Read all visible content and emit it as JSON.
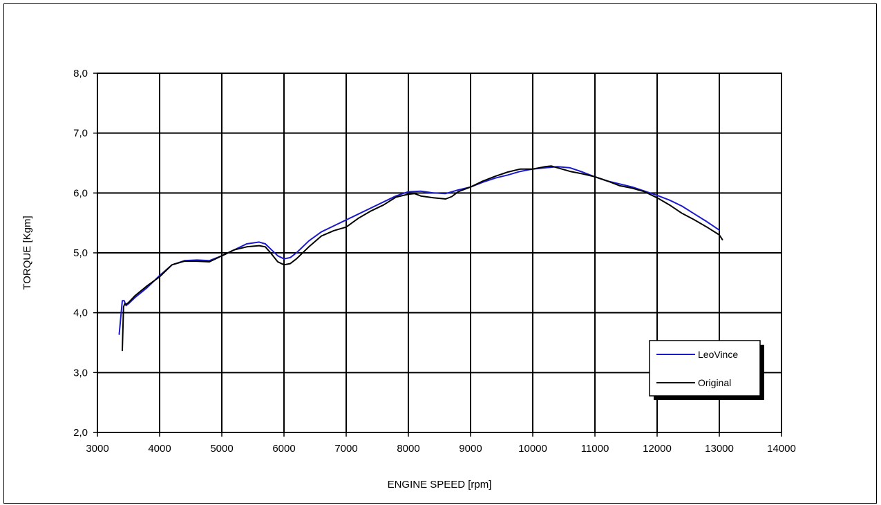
{
  "chart_data": {
    "type": "line",
    "xlabel": "ENGINE SPEED [rpm]",
    "ylabel": "TORQUE [Kgm]",
    "xlim": [
      3000,
      14000
    ],
    "ylim": [
      2.0,
      8.0
    ],
    "x_ticks": [
      "3000",
      "4000",
      "5000",
      "6000",
      "7000",
      "8000",
      "9000",
      "10000",
      "11000",
      "12000",
      "13000",
      "14000"
    ],
    "y_ticks": [
      "2,0",
      "3,0",
      "4,0",
      "5,0",
      "6,0",
      "7,0",
      "8,0"
    ],
    "grid": true,
    "legend_position": "bottom-right",
    "series": [
      {
        "name": "LeoVince",
        "color": "#1a1acc",
        "x": [
          3350,
          3400,
          3430,
          3460,
          3500,
          3600,
          3800,
          4000,
          4200,
          4400,
          4600,
          4800,
          5000,
          5200,
          5400,
          5600,
          5700,
          5800,
          5900,
          6000,
          6100,
          6200,
          6400,
          6600,
          6800,
          7000,
          7200,
          7400,
          7600,
          7800,
          8000,
          8200,
          8400,
          8600,
          8800,
          9000,
          9200,
          9400,
          9600,
          9800,
          10000,
          10200,
          10400,
          10600,
          10800,
          11000,
          11200,
          11400,
          11600,
          11800,
          12000,
          12200,
          12400,
          12600,
          12800,
          13000
        ],
        "y": [
          3.64,
          4.2,
          4.2,
          4.12,
          4.15,
          4.25,
          4.42,
          4.62,
          4.8,
          4.87,
          4.88,
          4.87,
          4.95,
          5.05,
          5.15,
          5.18,
          5.15,
          5.05,
          4.95,
          4.9,
          4.92,
          5.0,
          5.2,
          5.35,
          5.45,
          5.55,
          5.65,
          5.75,
          5.85,
          5.95,
          6.02,
          6.03,
          6.0,
          5.99,
          6.05,
          6.1,
          6.18,
          6.25,
          6.3,
          6.36,
          6.4,
          6.42,
          6.44,
          6.42,
          6.35,
          6.27,
          6.2,
          6.15,
          6.1,
          6.03,
          5.96,
          5.88,
          5.78,
          5.65,
          5.52,
          5.38
        ]
      },
      {
        "name": "Original",
        "color": "#000000",
        "x": [
          3400,
          3420,
          3440,
          3460,
          3500,
          3600,
          3800,
          4000,
          4200,
          4400,
          4600,
          4800,
          5000,
          5200,
          5400,
          5600,
          5700,
          5800,
          5900,
          6000,
          6100,
          6200,
          6400,
          6600,
          6800,
          7000,
          7200,
          7400,
          7600,
          7800,
          8000,
          8100,
          8200,
          8400,
          8600,
          8700,
          8800,
          9000,
          9200,
          9400,
          9600,
          9800,
          10000,
          10200,
          10300,
          10400,
          10600,
          10800,
          11000,
          11200,
          11400,
          11600,
          11800,
          12000,
          12200,
          12400,
          12600,
          12800,
          13000,
          13050
        ],
        "y": [
          3.37,
          4.1,
          4.15,
          4.14,
          4.17,
          4.28,
          4.45,
          4.6,
          4.8,
          4.86,
          4.86,
          4.85,
          4.95,
          5.05,
          5.1,
          5.12,
          5.1,
          4.98,
          4.85,
          4.8,
          4.82,
          4.9,
          5.1,
          5.28,
          5.37,
          5.43,
          5.58,
          5.7,
          5.8,
          5.93,
          5.98,
          5.99,
          5.95,
          5.92,
          5.9,
          5.94,
          6.02,
          6.1,
          6.2,
          6.28,
          6.35,
          6.4,
          6.4,
          6.44,
          6.45,
          6.42,
          6.36,
          6.32,
          6.27,
          6.2,
          6.12,
          6.08,
          6.02,
          5.92,
          5.8,
          5.66,
          5.55,
          5.43,
          5.3,
          5.22
        ]
      }
    ]
  }
}
